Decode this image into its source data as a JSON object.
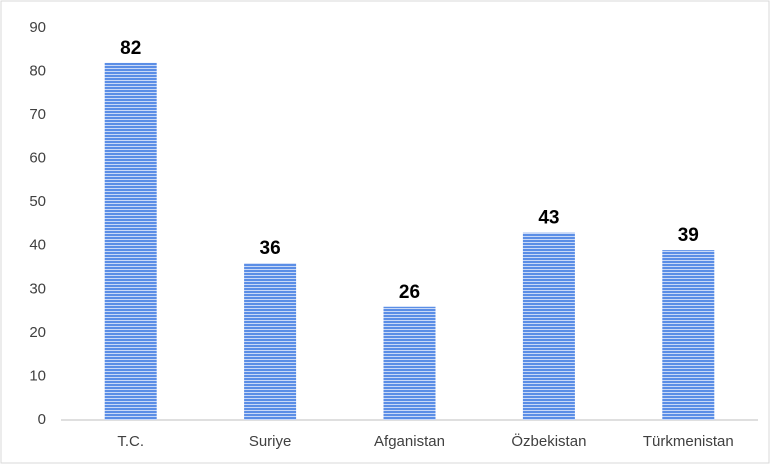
{
  "chart_data": {
    "type": "bar",
    "categories": [
      "T.C.",
      "Suriye",
      "Afganistan",
      "Özbekistan",
      "Türkmenistan"
    ],
    "values": [
      82,
      36,
      26,
      43,
      39
    ],
    "color": "#5b8ee6",
    "ylim": [
      0,
      90
    ],
    "yticks": [
      0,
      10,
      20,
      30,
      40,
      50,
      60,
      70,
      80,
      90
    ],
    "grid": false
  }
}
